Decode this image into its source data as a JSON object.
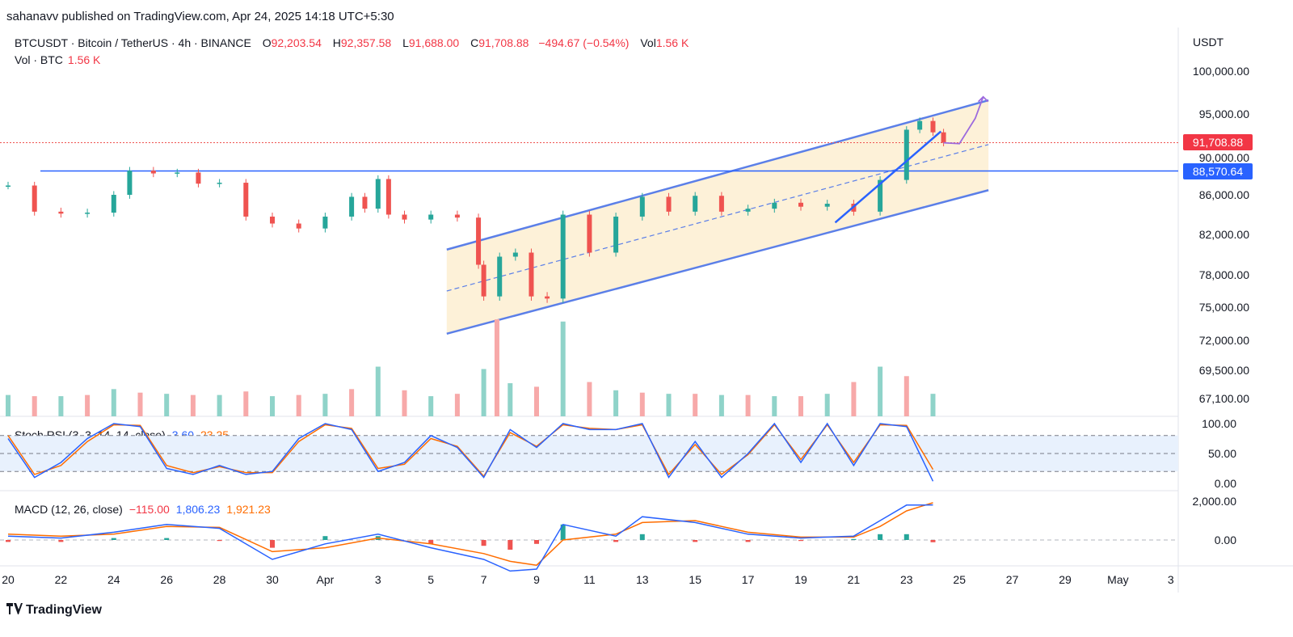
{
  "header": {
    "published": "sahanavv published on TradingView.com, Apr 24, 2025 14:18 UTC+5:30"
  },
  "legend": {
    "symbol": "BTCUSDT · Bitcoin / TetherUS · 4h · BINANCE",
    "open_label": "O",
    "open": "92,203.54",
    "high_label": "H",
    "high": "92,357.58",
    "low_label": "L",
    "low": "91,688.00",
    "close_label": "C",
    "close": "91,708.88",
    "change": "−494.67 (−0.54%)",
    "vol_label": "Vol",
    "vol": "1.56 K",
    "vol_row_label": "Vol · BTC",
    "vol_row_value": "1.56 K"
  },
  "axis": {
    "unit": "USDT",
    "last_price": "91,708.88",
    "level_price": "88,570.64"
  },
  "stoch": {
    "label": "Stoch RSI (3, 3, 14, 14, close)",
    "k": "3.60",
    "d": "23.25"
  },
  "macd": {
    "label": "MACD (12, 26, close)",
    "hist": "−115.00",
    "macd": "1,806.23",
    "signal": "1,921.23"
  },
  "footer": {
    "brand": "TradingView"
  },
  "colors": {
    "up": "#26a69a",
    "down": "#ef5350",
    "channel": "#5b7fe8",
    "channel_fill": "#fdf1d8",
    "level": "#2962ff",
    "stoch_k": "#2962ff",
    "stoch_d": "#ff6d00",
    "annotation": "#9c6ade"
  },
  "chart_data": {
    "type": "candlestick",
    "timeframe": "4h",
    "last_price": 91708.88,
    "horizontal_level": 88570.64,
    "price_ticks": [
      "100,000.00",
      "95,000.00",
      "90,000.00",
      "86,000.00",
      "82,000.00",
      "78,000.00",
      "75,000.00",
      "72,000.00",
      "69,500.00",
      "67,100.00"
    ],
    "price_tick_values": [
      100000,
      95000,
      90000,
      86000,
      82000,
      78000,
      75000,
      72000,
      69500,
      67100
    ],
    "date_ticks": [
      "20",
      "22",
      "24",
      "26",
      "28",
      "30",
      "Apr",
      "3",
      "5",
      "7",
      "9",
      "11",
      "13",
      "15",
      "17",
      "19",
      "21",
      "23",
      "25",
      "27",
      "29",
      "May",
      "3"
    ],
    "date_tick_positions": [
      0,
      2,
      4,
      6,
      8,
      10,
      12,
      14,
      16,
      18,
      20,
      22,
      24,
      26,
      28,
      30,
      32,
      34,
      36,
      38,
      40,
      42,
      44
    ],
    "stoch_ticks": [
      "100.00",
      "50.00",
      "0.00"
    ],
    "stoch_tick_values": [
      100,
      50,
      0
    ],
    "macd_ticks": [
      "2,000.00",
      "0.00"
    ],
    "macd_tick_values": [
      2000,
      0
    ],
    "price_path": [
      [
        0,
        87000
      ],
      [
        1,
        84300
      ],
      [
        2,
        84100
      ],
      [
        3,
        84200
      ],
      [
        4,
        86000
      ],
      [
        4.6,
        88600
      ],
      [
        5.5,
        88300
      ],
      [
        6.4,
        88400
      ],
      [
        7.2,
        87200
      ],
      [
        8,
        87300
      ],
      [
        9,
        83800
      ],
      [
        10,
        83100
      ],
      [
        11,
        82600
      ],
      [
        12,
        83800
      ],
      [
        13,
        85800
      ],
      [
        13.5,
        84600
      ],
      [
        14,
        87700
      ],
      [
        14.4,
        84000
      ],
      [
        15,
        83500
      ],
      [
        16,
        84000
      ],
      [
        17,
        83700
      ],
      [
        17.8,
        79000
      ],
      [
        18,
        76000
      ],
      [
        18.6,
        79800
      ],
      [
        19.2,
        80200
      ],
      [
        19.8,
        76000
      ],
      [
        20.4,
        75800
      ],
      [
        21,
        84000
      ],
      [
        22,
        80200
      ],
      [
        23,
        83800
      ],
      [
        24,
        85800
      ],
      [
        25,
        84300
      ],
      [
        26,
        85900
      ],
      [
        27,
        84300
      ],
      [
        28,
        84600
      ],
      [
        29,
        85200
      ],
      [
        30,
        84800
      ],
      [
        31,
        85100
      ],
      [
        32,
        84300
      ],
      [
        33,
        87600
      ],
      [
        34,
        93200
      ],
      [
        34.5,
        94200
      ],
      [
        35,
        92900
      ],
      [
        35.4,
        91700
      ]
    ],
    "channel": {
      "upper": [
        [
          16.6,
          80500
        ],
        [
          37.1,
          96600
        ]
      ],
      "lower": [
        [
          16.6,
          72600
        ],
        [
          37.1,
          86500
        ]
      ],
      "mid": [
        [
          16.6,
          76500
        ],
        [
          37.1,
          91500
        ]
      ]
    },
    "uptrend_line": [
      [
        31.3,
        83200
      ],
      [
        35.3,
        93000
      ]
    ],
    "projection": [
      [
        35.4,
        91700
      ],
      [
        36,
        91600
      ],
      [
        36.6,
        94500
      ],
      [
        36.9,
        97000
      ]
    ],
    "volume": [
      [
        0,
        67400
      ],
      [
        1,
        67300
      ],
      [
        2,
        67300
      ],
      [
        3,
        67400
      ],
      [
        4,
        67900
      ],
      [
        5,
        67600
      ],
      [
        6,
        67500
      ],
      [
        7,
        67400
      ],
      [
        8,
        67400
      ],
      [
        9,
        67700
      ],
      [
        10,
        67300
      ],
      [
        11,
        67400
      ],
      [
        12,
        67500
      ],
      [
        13,
        67900
      ],
      [
        14,
        69800
      ],
      [
        15,
        67800
      ],
      [
        16,
        67300
      ],
      [
        17,
        67500
      ],
      [
        18,
        69600
      ],
      [
        18.5,
        73900
      ],
      [
        19,
        68400
      ],
      [
        20,
        68100
      ],
      [
        21,
        73700
      ],
      [
        22,
        68500
      ],
      [
        23,
        67800
      ],
      [
        24,
        67600
      ],
      [
        25,
        67500
      ],
      [
        26,
        67500
      ],
      [
        27,
        67400
      ],
      [
        28,
        67400
      ],
      [
        29,
        67300
      ],
      [
        30,
        67300
      ],
      [
        31,
        67500
      ],
      [
        32,
        68500
      ],
      [
        33,
        69800
      ],
      [
        34,
        69000
      ],
      [
        35,
        67500
      ]
    ],
    "stoch_k": [
      [
        0,
        75
      ],
      [
        1,
        10
      ],
      [
        2,
        35
      ],
      [
        3,
        75
      ],
      [
        4,
        100
      ],
      [
        5,
        95
      ],
      [
        6,
        25
      ],
      [
        7,
        15
      ],
      [
        8,
        30
      ],
      [
        9,
        15
      ],
      [
        10,
        20
      ],
      [
        11,
        75
      ],
      [
        12,
        100
      ],
      [
        13,
        90
      ],
      [
        14,
        20
      ],
      [
        15,
        35
      ],
      [
        16,
        80
      ],
      [
        17,
        60
      ],
      [
        18,
        10
      ],
      [
        19,
        90
      ],
      [
        20,
        60
      ],
      [
        21,
        100
      ],
      [
        22,
        90
      ],
      [
        23,
        90
      ],
      [
        24,
        100
      ],
      [
        25,
        10
      ],
      [
        26,
        70
      ],
      [
        27,
        10
      ],
      [
        28,
        50
      ],
      [
        29,
        100
      ],
      [
        30,
        35
      ],
      [
        31,
        100
      ],
      [
        32,
        30
      ],
      [
        33,
        100
      ],
      [
        34,
        95
      ],
      [
        35,
        3.6
      ]
    ],
    "stoch_d": [
      [
        0,
        80
      ],
      [
        1,
        15
      ],
      [
        2,
        30
      ],
      [
        3,
        70
      ],
      [
        4,
        98
      ],
      [
        5,
        97
      ],
      [
        6,
        30
      ],
      [
        7,
        18
      ],
      [
        8,
        28
      ],
      [
        9,
        18
      ],
      [
        10,
        18
      ],
      [
        11,
        70
      ],
      [
        12,
        98
      ],
      [
        13,
        92
      ],
      [
        14,
        25
      ],
      [
        15,
        32
      ],
      [
        16,
        75
      ],
      [
        17,
        62
      ],
      [
        18,
        12
      ],
      [
        19,
        85
      ],
      [
        20,
        62
      ],
      [
        21,
        98
      ],
      [
        22,
        92
      ],
      [
        23,
        90
      ],
      [
        24,
        98
      ],
      [
        25,
        15
      ],
      [
        26,
        65
      ],
      [
        27,
        15
      ],
      [
        28,
        48
      ],
      [
        29,
        98
      ],
      [
        30,
        40
      ],
      [
        31,
        98
      ],
      [
        32,
        35
      ],
      [
        33,
        98
      ],
      [
        34,
        97
      ],
      [
        35,
        23.25
      ]
    ],
    "macd_line": [
      [
        0,
        200
      ],
      [
        2,
        100
      ],
      [
        4,
        400
      ],
      [
        6,
        800
      ],
      [
        8,
        600
      ],
      [
        10,
        -1000
      ],
      [
        12,
        -200
      ],
      [
        14,
        300
      ],
      [
        16,
        -400
      ],
      [
        18,
        -1000
      ],
      [
        19,
        -1600
      ],
      [
        20,
        -1500
      ],
      [
        21,
        800
      ],
      [
        23,
        200
      ],
      [
        24,
        1200
      ],
      [
        26,
        900
      ],
      [
        28,
        300
      ],
      [
        30,
        100
      ],
      [
        32,
        200
      ],
      [
        33,
        1000
      ],
      [
        34,
        1800
      ],
      [
        35,
        1806.23
      ]
    ],
    "macd_signal": [
      [
        0,
        300
      ],
      [
        2,
        200
      ],
      [
        4,
        300
      ],
      [
        6,
        700
      ],
      [
        8,
        650
      ],
      [
        10,
        -600
      ],
      [
        12,
        -400
      ],
      [
        14,
        100
      ],
      [
        16,
        -200
      ],
      [
        18,
        -700
      ],
      [
        19,
        -1100
      ],
      [
        20,
        -1300
      ],
      [
        21,
        0
      ],
      [
        23,
        300
      ],
      [
        24,
        900
      ],
      [
        26,
        1000
      ],
      [
        28,
        400
      ],
      [
        30,
        150
      ],
      [
        32,
        150
      ],
      [
        33,
        700
      ],
      [
        34,
        1500
      ],
      [
        35,
        1921.23
      ]
    ],
    "macd_hist": [
      [
        0,
        -100
      ],
      [
        2,
        -100
      ],
      [
        4,
        100
      ],
      [
        6,
        100
      ],
      [
        8,
        -50
      ],
      [
        10,
        -400
      ],
      [
        12,
        200
      ],
      [
        14,
        200
      ],
      [
        16,
        -200
      ],
      [
        18,
        -300
      ],
      [
        19,
        -500
      ],
      [
        20,
        -200
      ],
      [
        21,
        800
      ],
      [
        23,
        -100
      ],
      [
        24,
        300
      ],
      [
        26,
        -100
      ],
      [
        28,
        -100
      ],
      [
        30,
        -50
      ],
      [
        32,
        50
      ],
      [
        33,
        300
      ],
      [
        34,
        300
      ],
      [
        35,
        -115
      ]
    ]
  }
}
